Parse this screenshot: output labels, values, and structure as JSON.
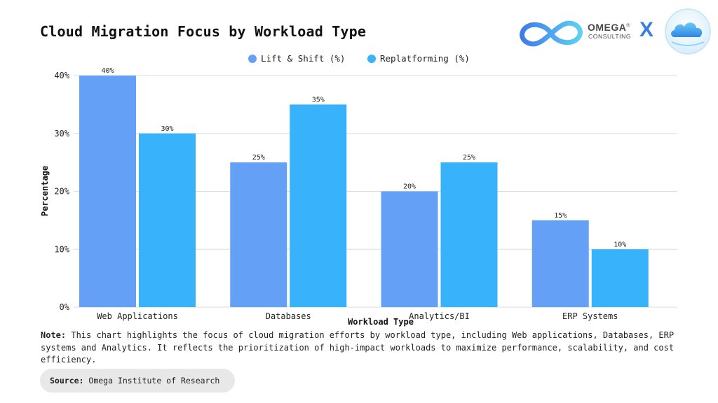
{
  "title": "Cloud Migration Focus by Workload Type",
  "brand": {
    "name": "OMEGA",
    "registered": "®",
    "subtitle": "CONSULTING",
    "separator": "X"
  },
  "colors": {
    "lift_shift": "#64a1f6",
    "replatforming": "#37b2fb",
    "grid": "#dddddd",
    "logo_blue": "#3b7de0"
  },
  "chart_data": {
    "type": "bar",
    "categories": [
      "Web Applications",
      "Databases",
      "Analytics/BI",
      "ERP Systems"
    ],
    "series": [
      {
        "name": "Lift & Shift (%)",
        "values": [
          40,
          25,
          20,
          15
        ]
      },
      {
        "name": "Replatforming (%)",
        "values": [
          30,
          35,
          25,
          10
        ]
      }
    ],
    "xlabel": "Workload Type",
    "ylabel": "Percentage",
    "ylim": [
      0,
      40
    ],
    "yticks": [
      "0%",
      "10%",
      "20%",
      "30%",
      "40%"
    ],
    "value_suffix": "%",
    "grid": true,
    "legend_position": "top-center"
  },
  "note": {
    "label": "Note:",
    "text": " This chart highlights the focus of cloud migration efforts by workload type, including Web applications, Databases, ERP systems and Analytics. It reflects the prioritization of high-impact workloads to maximize performance, scalability, and cost efficiency."
  },
  "source": {
    "label": "Source:",
    "text": " Omega Institute of Research"
  }
}
